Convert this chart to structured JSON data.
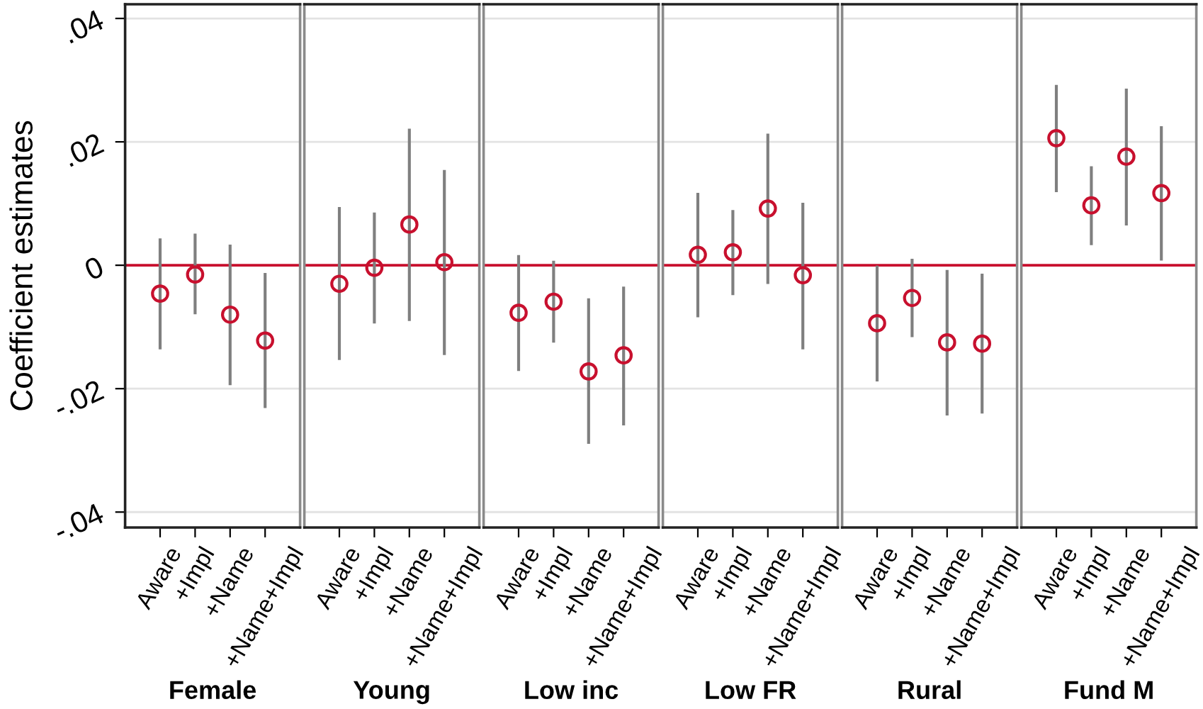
{
  "chart_data": [
    {
      "type": "scatter",
      "xlabel": "Female",
      "ylabel": "Coefficient estimates",
      "categories": [
        "Aware",
        "+Impl",
        "+Name",
        "+Name+Impl"
      ],
      "values": [
        -0.0046,
        -0.0015,
        -0.008,
        -0.0122
      ],
      "errors": [
        [
          -0.0134,
          0.0041
        ],
        [
          -0.0077,
          0.0049
        ],
        [
          -0.0192,
          0.0031
        ],
        [
          -0.0229,
          -0.0015
        ]
      ],
      "color": "#c8102e",
      "marker": "circle",
      "ylim": [
        -0.0425,
        0.0423
      ],
      "yticks": [
        {
          "value": -0.04,
          "label": "-.04"
        },
        {
          "value": -0.02,
          "label": "-.02"
        },
        0,
        {
          "value": 0.02,
          "label": ".02"
        },
        {
          "value": 0.04,
          "label": ".04"
        }
      ],
      "grid": "y",
      "ref_lines": [
        {
          "axis": "y",
          "value": 0,
          "color": "#c8102e"
        }
      ]
    },
    {
      "type": "scatter",
      "xlabel": "Young",
      "categories": [
        "Aware",
        "+Impl",
        "+Name",
        "+Name+Impl"
      ],
      "values": [
        -0.003,
        -0.0004,
        0.0066,
        0.0005
      ],
      "errors": [
        [
          -0.0151,
          0.0092
        ],
        [
          -0.0092,
          0.0083
        ],
        [
          -0.0088,
          0.0219
        ],
        [
          -0.0143,
          0.0152
        ]
      ],
      "color": "#c8102e",
      "marker": "circle",
      "ylim": [
        -0.0425,
        0.0423
      ],
      "yticks": [
        -0.04,
        -0.02,
        0,
        0.02,
        0.04
      ],
      "grid": "y",
      "tick_labels": "x",
      "ref_lines": [
        {
          "axis": "y",
          "value": 0,
          "color": "#c8102e"
        }
      ]
    },
    {
      "type": "scatter",
      "xlabel": "Low inc",
      "categories": [
        "Aware",
        "+Impl",
        "+Name",
        "+Name+Impl"
      ],
      "values": [
        -0.0077,
        -0.0059,
        -0.0172,
        -0.0146
      ],
      "errors": [
        [
          -0.0169,
          0.0014
        ],
        [
          -0.0123,
          0.0005
        ],
        [
          -0.0287,
          -0.0056
        ],
        [
          -0.0257,
          -0.0037
        ]
      ],
      "color": "#c8102e",
      "marker": "circle",
      "ylim": [
        -0.0425,
        0.0423
      ],
      "yticks": [
        -0.04,
        -0.02,
        0,
        0.02,
        0.04
      ],
      "grid": "y",
      "tick_labels": "x",
      "ref_lines": [
        {
          "axis": "y",
          "value": 0,
          "color": "#c8102e"
        }
      ]
    },
    {
      "type": "scatter",
      "xlabel": "Low FR",
      "categories": [
        "Aware",
        "+Impl",
        "+Name",
        "+Name+Impl"
      ],
      "values": [
        0.0017,
        0.0021,
        0.0092,
        -0.0016
      ],
      "errors": [
        [
          -0.0082,
          0.0115
        ],
        [
          -0.0046,
          0.0087
        ],
        [
          -0.0028,
          0.0211
        ],
        [
          -0.0134,
          0.0099
        ]
      ],
      "color": "#c8102e",
      "marker": "circle",
      "ylim": [
        -0.0425,
        0.0423
      ],
      "yticks": [
        -0.04,
        -0.02,
        0,
        0.02,
        0.04
      ],
      "grid": "y",
      "tick_labels": "x",
      "ref_lines": [
        {
          "axis": "y",
          "value": 0,
          "color": "#c8102e"
        }
      ]
    },
    {
      "type": "scatter",
      "xlabel": "Rural",
      "categories": [
        "Aware",
        "+Impl",
        "+Name",
        "+Name+Impl"
      ],
      "values": [
        -0.0094,
        -0.0053,
        -0.0125,
        -0.0127
      ],
      "errors": [
        [
          -0.0186,
          -0.0003
        ],
        [
          -0.0114,
          0.0008
        ],
        [
          -0.0241,
          -0.001
        ],
        [
          -0.0238,
          -0.0016
        ]
      ],
      "color": "#c8102e",
      "marker": "circle",
      "ylim": [
        -0.0425,
        0.0423
      ],
      "yticks": [
        -0.04,
        -0.02,
        0,
        0.02,
        0.04
      ],
      "grid": "y",
      "tick_labels": "x",
      "ref_lines": [
        {
          "axis": "y",
          "value": 0,
          "color": "#c8102e"
        }
      ]
    },
    {
      "type": "scatter",
      "xlabel": "Fund M",
      "categories": [
        "Aware",
        "+Impl",
        "+Name",
        "+Name+Impl"
      ],
      "values": [
        0.0206,
        0.0097,
        0.0176,
        0.0117
      ],
      "errors": [
        [
          0.0121,
          0.029
        ],
        [
          0.0035,
          0.0158
        ],
        [
          0.0067,
          0.0284
        ],
        [
          0.001,
          0.0223
        ]
      ],
      "color": "#c8102e",
      "marker": "circle",
      "ylim": [
        -0.0425,
        0.0423
      ],
      "yticks": [
        -0.04,
        -0.02,
        0,
        0.02,
        0.04
      ],
      "grid": "y",
      "tick_labels": "x",
      "ref_lines": [
        {
          "axis": "y",
          "value": 0,
          "color": "#c8102e"
        }
      ]
    }
  ]
}
